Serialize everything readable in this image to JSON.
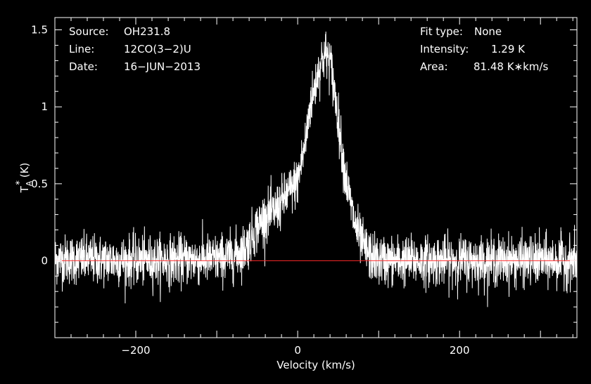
{
  "chart_data": {
    "type": "line",
    "title": "",
    "xlabel": "Velocity (km/s)",
    "ylabel": {
      "symbol": "T",
      "superscript": "*",
      "subscript": "A",
      "unit": "(K)"
    },
    "xlim": [
      -300,
      345
    ],
    "ylim": [
      -0.5,
      1.58
    ],
    "grid": false,
    "x_ticks": [
      {
        "value": -200,
        "label": "−200"
      },
      {
        "value": 0,
        "label": "0"
      },
      {
        "value": 200,
        "label": "200"
      }
    ],
    "y_ticks": [
      {
        "value": 0,
        "label": "0"
      },
      {
        "value": 0.5,
        "label": "0.5"
      },
      {
        "value": 1,
        "label": "1"
      },
      {
        "value": 1.5,
        "label": "1.5"
      }
    ],
    "baseline": {
      "y": 0,
      "color": "#ff2a2a"
    },
    "line_color": "#ffffff",
    "noise_rms": 0.08,
    "series": [
      {
        "x": [
          -300,
          -200,
          -100,
          -80,
          -65,
          -50,
          -40,
          -30,
          -20,
          -10,
          0,
          10,
          15,
          20,
          25,
          30,
          35,
          40,
          45,
          50,
          55,
          60,
          65,
          70,
          80,
          90,
          100,
          200,
          345
        ],
        "y": [
          0.01,
          0.0,
          0.01,
          0.03,
          0.08,
          0.22,
          0.29,
          0.31,
          0.38,
          0.45,
          0.52,
          0.78,
          1.0,
          1.1,
          1.22,
          1.31,
          1.34,
          1.3,
          1.12,
          0.92,
          0.7,
          0.52,
          0.38,
          0.25,
          0.1,
          0.03,
          0.0,
          0.0,
          0.0
        ]
      }
    ]
  },
  "annotations": {
    "left": [
      {
        "label": "Source:",
        "value": "OH231.8"
      },
      {
        "label": "Line:",
        "value": "12CO(3−2)U"
      },
      {
        "label": "Date:",
        "value": "16−JUN−2013"
      }
    ],
    "right": [
      {
        "label": "Fit type:",
        "value": "None"
      },
      {
        "label": "Intensity:",
        "value": "1.29 K"
      },
      {
        "label": "Area:",
        "value": "81.48 K∗km/s"
      }
    ]
  }
}
